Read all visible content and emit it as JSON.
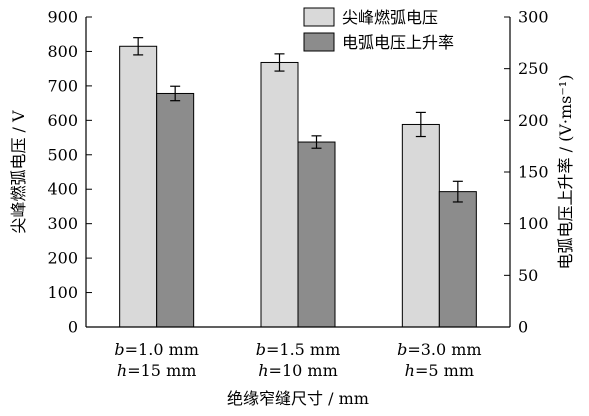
{
  "chart_data": {
    "type": "bar",
    "title": "",
    "categories": [
      {
        "line1_var": "b",
        "line1_rest": "=1.0 mm",
        "line2_var": "h",
        "line2_rest": "=15 mm"
      },
      {
        "line1_var": "b",
        "line1_rest": "=1.5 mm",
        "line2_var": "h",
        "line2_rest": "=10 mm"
      },
      {
        "line1_var": "b",
        "line1_rest": "=3.0 mm",
        "line2_var": "h",
        "line2_rest": "=5 mm"
      }
    ],
    "series": [
      {
        "name": "尖峰燃弧电压",
        "axis": "left",
        "color": "#d9d9d9",
        "values": [
          815,
          768,
          588
        ],
        "error": [
          25,
          25,
          35
        ]
      },
      {
        "name": "电弧电压上升率",
        "axis": "right",
        "color": "#8c8c8c",
        "values": [
          226,
          179,
          131
        ],
        "error": [
          7,
          6,
          10
        ]
      }
    ],
    "xlabel": "绝缘窄缝尺寸 / mm",
    "ylabel_left": "尖峰燃弧电压 / V",
    "ylabel_right": "电弧电压上升率 / (V·ms⁻¹)",
    "ylim_left": [
      0,
      900
    ],
    "yticks_left": [
      0,
      100,
      200,
      300,
      400,
      500,
      600,
      700,
      800,
      900
    ],
    "ylim_right": [
      0,
      300
    ],
    "yticks_right": [
      0,
      50,
      100,
      150,
      200,
      250,
      300
    ],
    "legend_position": "top-right",
    "grid": false
  }
}
